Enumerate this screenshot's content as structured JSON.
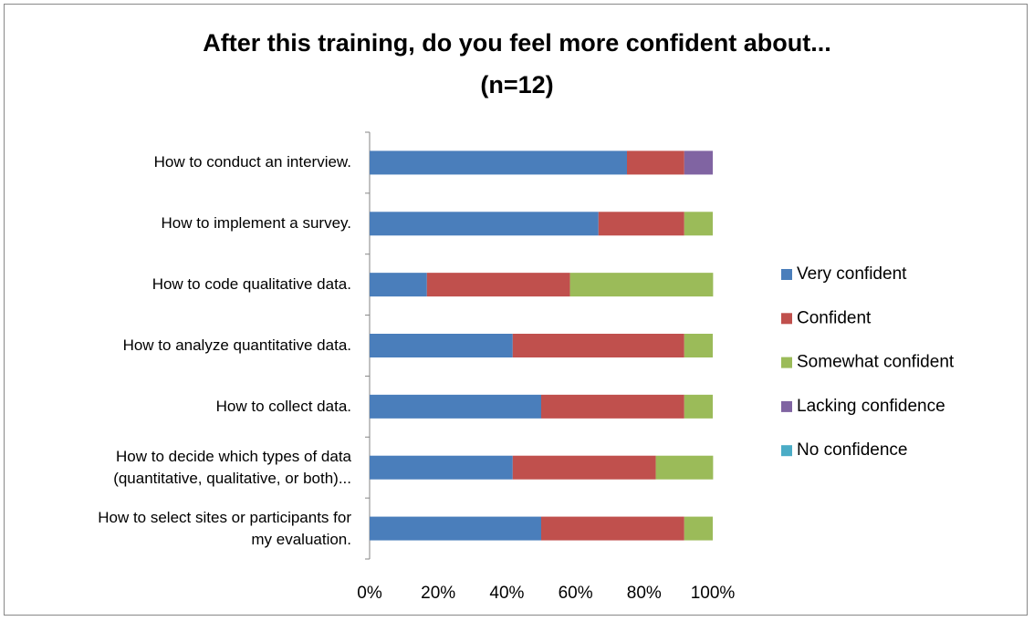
{
  "chart_data": {
    "type": "stacked_barh",
    "title": "After this training, do you feel more confident about...\n(n=12)",
    "categories": [
      "How to conduct an interview.",
      "How to implement a survey.",
      "How to code qualitative data.",
      "How to analyze quantitative data.",
      "How to collect data.",
      "How to decide which types of data\n(quantitative, qualitative, or both)...",
      "How to select sites or participants for\nmy evaluation."
    ],
    "series": [
      {
        "name": "Very confident",
        "color": "#4a7ebb",
        "values": [
          75,
          66.7,
          16.7,
          41.7,
          50,
          41.7,
          50
        ]
      },
      {
        "name": "Confident",
        "color": "#c0504d",
        "values": [
          16.7,
          25,
          41.7,
          50,
          41.7,
          41.7,
          41.7
        ]
      },
      {
        "name": "Somewhat confident",
        "color": "#9bbb59",
        "values": [
          0,
          8.3,
          41.7,
          8.3,
          8.3,
          16.7,
          8.3
        ]
      },
      {
        "name": "Lacking confidence",
        "color": "#8064a2",
        "values": [
          8.3,
          0,
          0,
          0,
          0,
          0,
          0
        ]
      },
      {
        "name": "No confidence",
        "color": "#4bacc6",
        "values": [
          0,
          0,
          0,
          0,
          0,
          0,
          0
        ]
      }
    ],
    "xlim": [
      0,
      100
    ],
    "xticks": [
      {
        "value": 0,
        "label": "0%"
      },
      {
        "value": 20,
        "label": "20%"
      },
      {
        "value": 40,
        "label": "40%"
      },
      {
        "value": 60,
        "label": "60%"
      },
      {
        "value": 80,
        "label": "80%"
      },
      {
        "value": 100,
        "label": "100%"
      }
    ],
    "legend": "right"
  }
}
